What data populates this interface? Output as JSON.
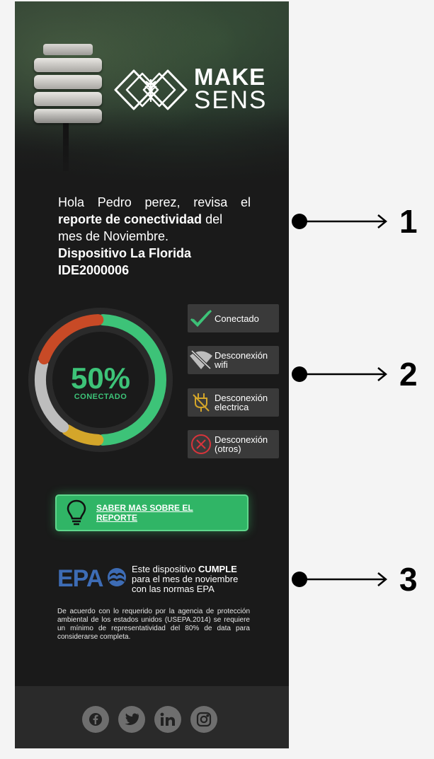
{
  "brand": {
    "make": "MAKE",
    "sens": "SENS"
  },
  "intro": {
    "greeting": "Hola Pedro perez, revisa el",
    "report_bold": "reporte de conectividad",
    "after_bold": "del",
    "month_line": "mes de Noviembre.",
    "device_line": "Dispositivo La Florida",
    "device_id": "IDE2000006"
  },
  "chart_data": {
    "type": "pie",
    "subtype": "donut",
    "center_value": "50%",
    "center_label": "CONECTADO",
    "segments": [
      {
        "name": "Conectado",
        "value": 50,
        "color": "#3dc378"
      },
      {
        "name": "Desconexión electrica",
        "value": 10,
        "color": "#d4a62a"
      },
      {
        "name": "Desconexión wifi",
        "value": 20,
        "color": "#bdbdbd"
      },
      {
        "name": "Desconexión (otros)",
        "value": 20,
        "color": "#c84a26"
      }
    ]
  },
  "legend": {
    "connected": "Conectado",
    "wifi_l1": "Desconexión",
    "wifi_l2": "wifi",
    "electric_l1": "Desconexión",
    "electric_l2": "electrica",
    "other_l1": "Desconexión",
    "other_l2": "(otros)"
  },
  "cta": {
    "line1": "SABER MAS SOBRE EL",
    "line2": "REPORTE"
  },
  "epa": {
    "logo_text": "EPA",
    "pre": "Este dispositivo",
    "bold": "CUMPLE",
    "line2": "para el mes de noviembre",
    "line3": "con las normas EPA",
    "disclaimer": "De acuerdo con lo requerido por la agencia de protección ambiental de los estados unidos (USEPA.2014) se requiere un mínimo de representatividad del 80% de data para considerarse completa."
  },
  "annotations": [
    "1",
    "2",
    "3"
  ],
  "icons": {
    "connected": "check-icon",
    "wifi": "wifi-off-icon",
    "electric": "plug-off-icon",
    "other": "x-circle-icon",
    "cta": "lightbulb-icon",
    "social": [
      "facebook-icon",
      "twitter-icon",
      "linkedin-icon",
      "instagram-icon"
    ]
  },
  "colors": {
    "accent_green": "#3dc378",
    "button_green": "#30b566",
    "epa_blue": "#3d6cb5",
    "background": "#1a1a1a"
  }
}
